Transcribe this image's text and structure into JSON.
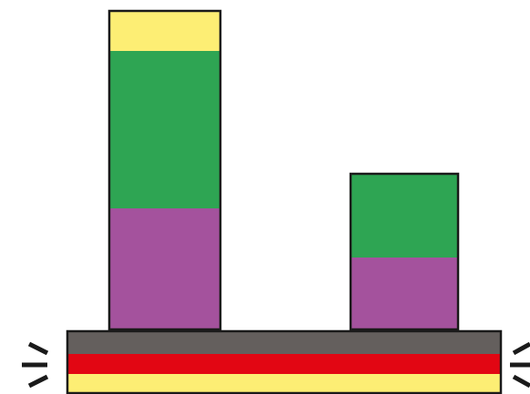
{
  "colors": {
    "background": "#ffffff",
    "outline": "#1a1a1a",
    "yellow": "#fdee74",
    "green": "#2ea553",
    "purple": "#a4529d",
    "gray": "#645f5d",
    "red": "#e20613"
  },
  "columns": [
    {
      "name": "left-column",
      "segments": [
        {
          "name": "yellow",
          "color": "#fdee74"
        },
        {
          "name": "green",
          "color": "#2ea553"
        },
        {
          "name": "purple",
          "color": "#a4529d"
        }
      ]
    },
    {
      "name": "right-column",
      "segments": [
        {
          "name": "green",
          "color": "#2ea553"
        },
        {
          "name": "purple",
          "color": "#a4529d"
        }
      ]
    }
  ],
  "base": {
    "layers": [
      {
        "name": "gray",
        "color": "#645f5d"
      },
      {
        "name": "red",
        "color": "#e20613"
      },
      {
        "name": "yellow",
        "color": "#fdee74"
      }
    ]
  },
  "icons": {
    "left": "vibration-marks-icon",
    "right": "vibration-marks-icon"
  }
}
